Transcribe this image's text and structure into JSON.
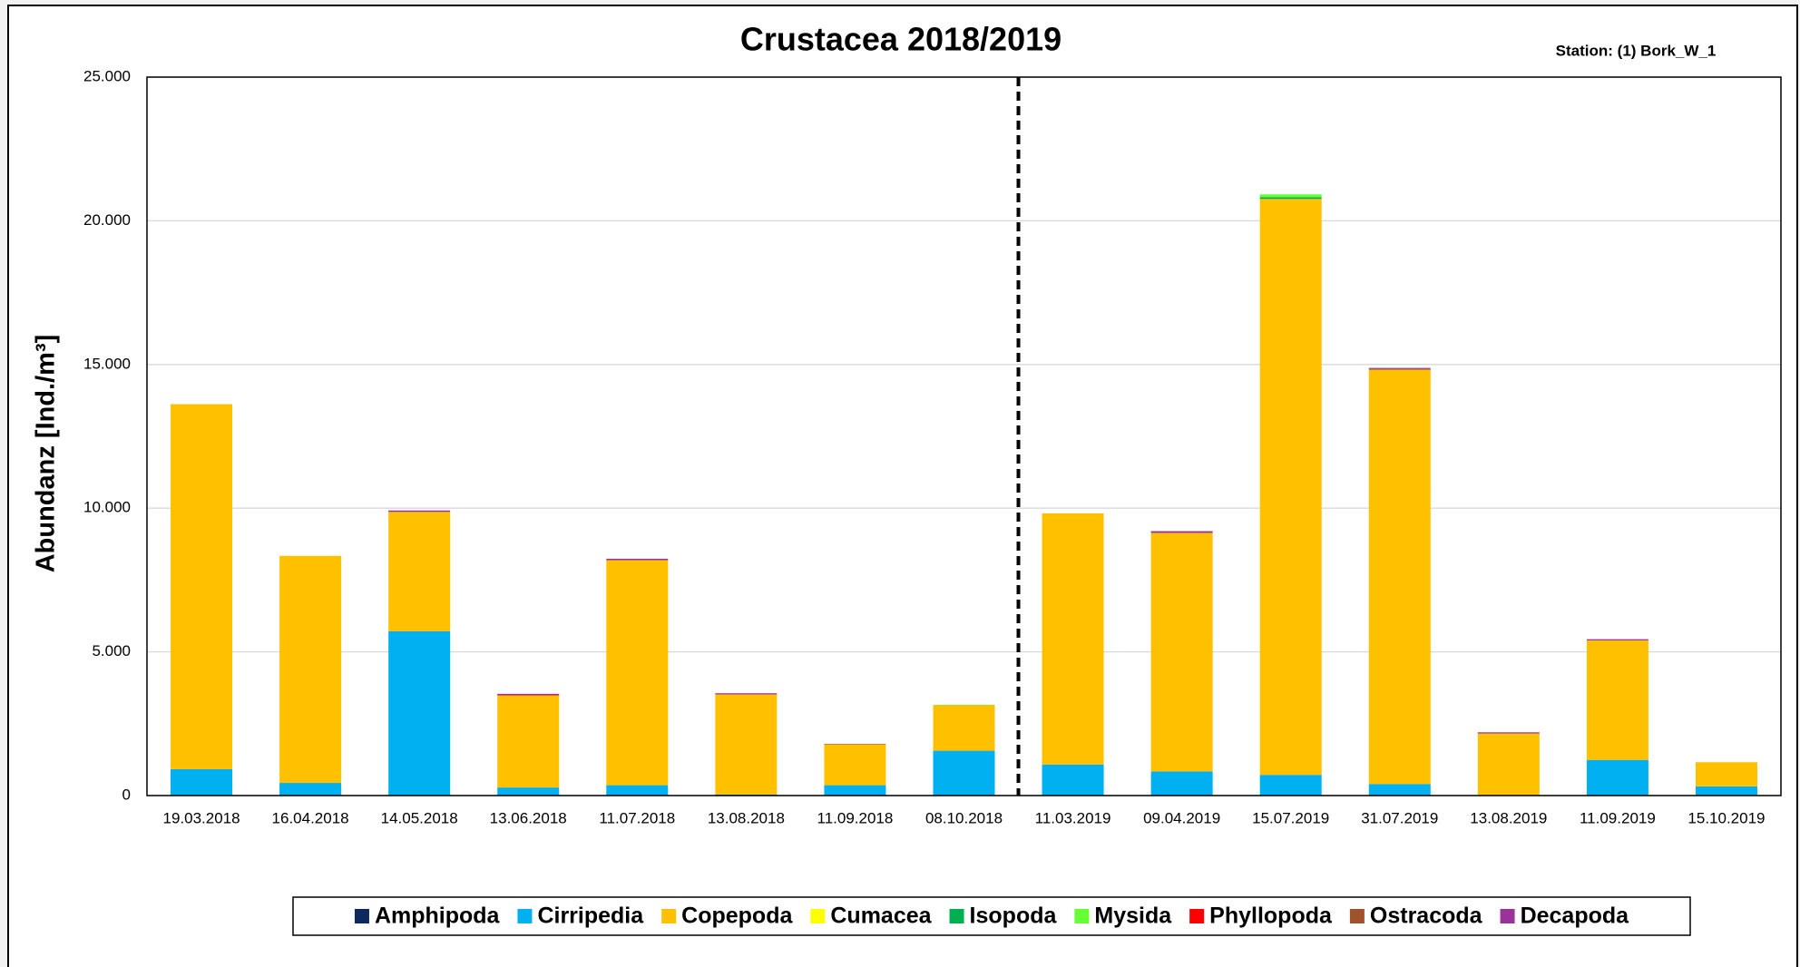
{
  "chart_data": {
    "type": "stacked_bar",
    "title": "Crustacea 2018/2019",
    "annotation": "Station: (1) Bork_W_1",
    "y_label": "Abundanz [Ind./m³]",
    "categories": [
      "19.03.2018",
      "16.04.2018",
      "14.05.2018",
      "13.06.2018",
      "11.07.2018",
      "13.08.2018",
      "11.09.2018",
      "08.10.2018",
      "11.03.2019",
      "09.04.2019",
      "15.07.2019",
      "31.07.2019",
      "13.08.2019",
      "11.09.2019",
      "15.10.2019"
    ],
    "series": [
      {
        "name": "Amphipoda",
        "color": "#0e2a5c",
        "values": [
          0,
          0,
          0,
          0,
          0,
          0,
          0,
          0,
          0,
          0,
          0,
          0,
          0,
          0,
          0
        ]
      },
      {
        "name": "Cirripedia",
        "color": "#00b0f0",
        "values": [
          920,
          440,
          5720,
          280,
          360,
          40,
          360,
          1560,
          1080,
          840,
          720,
          400,
          0,
          1240,
          320
        ]
      },
      {
        "name": "Copepoda",
        "color": "#ffc000",
        "values": [
          12700,
          7900,
          4150,
          3200,
          7830,
          3480,
          1420,
          1580,
          8740,
          8300,
          20040,
          14420,
          2160,
          4160,
          840
        ]
      },
      {
        "name": "Cumacea",
        "color": "#ffff00",
        "values": [
          0,
          0,
          0,
          0,
          0,
          0,
          0,
          0,
          0,
          0,
          0,
          0,
          0,
          0,
          0
        ]
      },
      {
        "name": "Isopoda",
        "color": "#00b050",
        "values": [
          0,
          0,
          0,
          0,
          0,
          0,
          0,
          0,
          0,
          0,
          60,
          0,
          0,
          0,
          0
        ]
      },
      {
        "name": "Mysida",
        "color": "#66ff33",
        "values": [
          0,
          0,
          0,
          0,
          0,
          0,
          0,
          20,
          0,
          0,
          100,
          0,
          0,
          0,
          0
        ]
      },
      {
        "name": "Phyllopoda",
        "color": "#ff0000",
        "values": [
          0,
          0,
          0,
          20,
          0,
          0,
          0,
          0,
          0,
          0,
          0,
          0,
          0,
          0,
          0
        ]
      },
      {
        "name": "Ostracoda",
        "color": "#a0522d",
        "values": [
          0,
          0,
          0,
          0,
          0,
          0,
          20,
          0,
          0,
          0,
          0,
          20,
          0,
          0,
          0
        ]
      },
      {
        "name": "Decapoda",
        "color": "#993399",
        "values": [
          0,
          0,
          50,
          40,
          50,
          40,
          0,
          0,
          0,
          60,
          0,
          40,
          40,
          40,
          0
        ]
      }
    ],
    "ylim": [
      0,
      25000
    ],
    "yticks": [
      0,
      {
        "value": 5000,
        "label": "5.000"
      },
      {
        "value": 10000,
        "label": "10.000"
      },
      {
        "value": 15000,
        "label": "15.000"
      },
      {
        "value": 20000,
        "label": "20.000"
      },
      {
        "value": 25000,
        "label": "25.000"
      }
    ],
    "grid": true,
    "legend": "bottom"
  }
}
